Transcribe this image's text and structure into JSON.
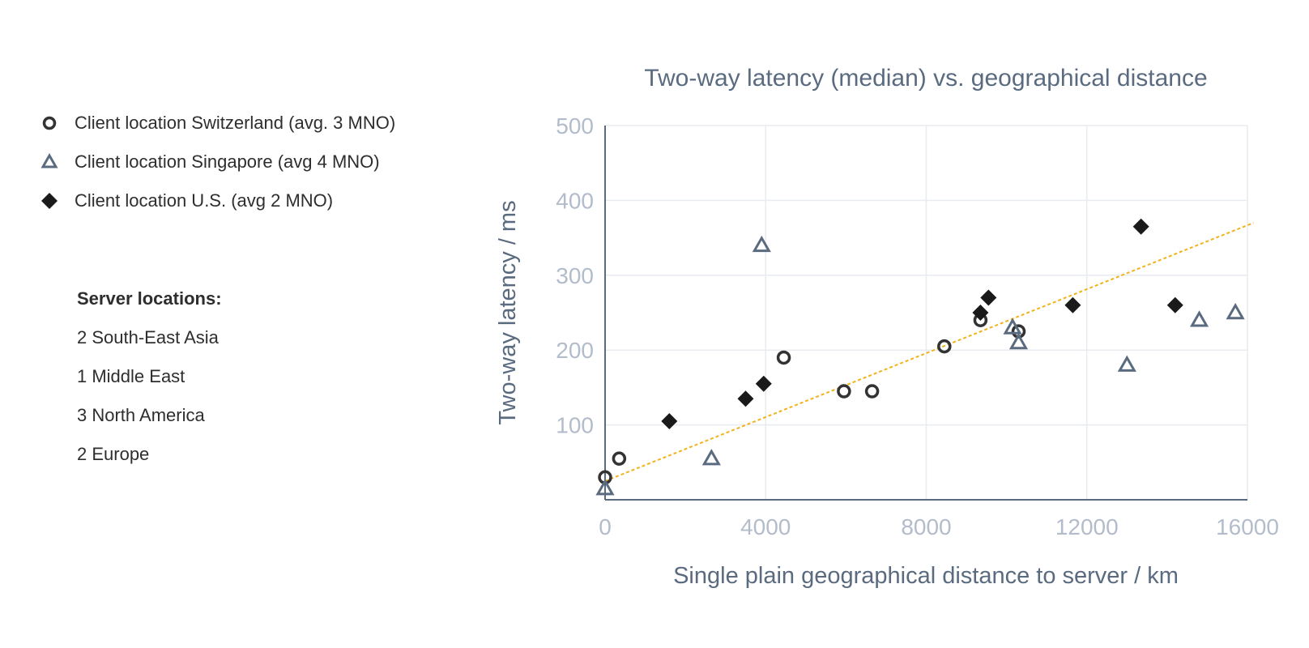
{
  "legend": [
    {
      "label": "Client location Switzerland (avg. 3 MNO)",
      "marker": "circle",
      "color": "#333333"
    },
    {
      "label": "Client location Singapore (avg 4 MNO)",
      "marker": "triangle",
      "color": "#5a6b80"
    },
    {
      "label": "Client location U.S. (avg 2 MNO)",
      "marker": "diamond",
      "color": "#1a1a1a"
    }
  ],
  "servers": {
    "title": "Server locations:",
    "items": [
      "2 South-East Asia",
      "1 Middle East",
      "3 North America",
      "2 Europe"
    ]
  },
  "chart_data": {
    "type": "scatter",
    "title": "Two-way latency (median) vs. geographical distance",
    "xlabel": "Single plain geographical distance to server / km",
    "ylabel": "Two-way latency / ms",
    "xlim": [
      0,
      16000
    ],
    "ylim": [
      0,
      500
    ],
    "xticks": [
      0,
      4000,
      8000,
      12000,
      16000
    ],
    "yticks": [
      100,
      200,
      300,
      400,
      500
    ],
    "grid": true,
    "series": [
      {
        "name": "Client location Switzerland (avg. 3 MNO)",
        "marker": "circle",
        "color": "#333333",
        "points": [
          [
            0,
            30
          ],
          [
            350,
            55
          ],
          [
            4450,
            190
          ],
          [
            5950,
            145
          ],
          [
            6650,
            145
          ],
          [
            8450,
            205
          ],
          [
            9350,
            240
          ],
          [
            10300,
            225
          ]
        ]
      },
      {
        "name": "Client location Singapore (avg 4 MNO)",
        "marker": "triangle",
        "color": "#5a6b80",
        "points": [
          [
            0,
            15
          ],
          [
            2650,
            55
          ],
          [
            3900,
            340
          ],
          [
            10150,
            230
          ],
          [
            10300,
            210
          ],
          [
            13000,
            180
          ],
          [
            14800,
            240
          ],
          [
            15700,
            250
          ]
        ]
      },
      {
        "name": "Client location U.S. (avg 2 MNO)",
        "marker": "diamond",
        "color": "#1a1a1a",
        "points": [
          [
            1600,
            105
          ],
          [
            3500,
            135
          ],
          [
            3950,
            155
          ],
          [
            9350,
            250
          ],
          [
            9550,
            270
          ],
          [
            11650,
            260
          ],
          [
            13350,
            365
          ],
          [
            14200,
            260
          ]
        ]
      }
    ],
    "trendline": {
      "style": "dotted",
      "color": "#f2b21b",
      "from": [
        0,
        25
      ],
      "to": [
        16150,
        370
      ]
    }
  }
}
